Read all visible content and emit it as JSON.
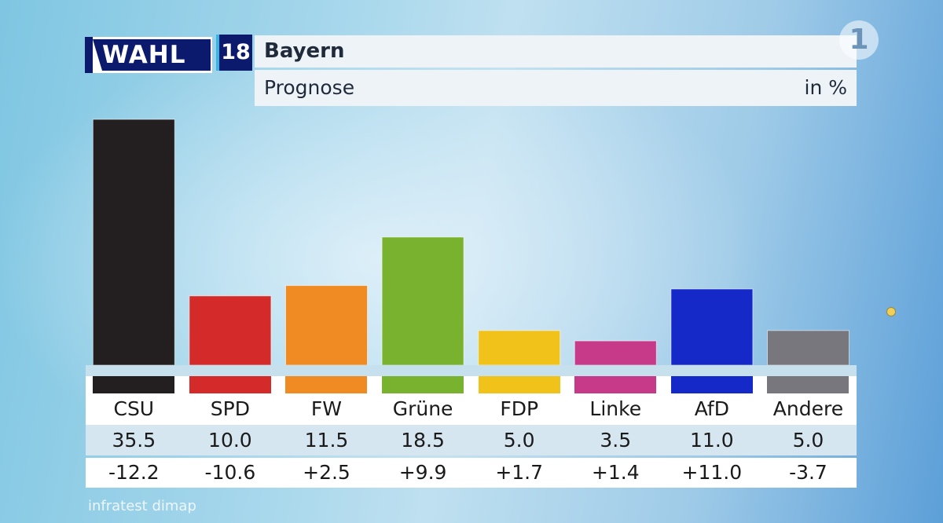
{
  "logo": {
    "wahl": "WAHL",
    "year": "18",
    "broadcaster": "1"
  },
  "header": {
    "title": "Bayern",
    "subtitle": "Prognose",
    "unit": "in %"
  },
  "source": "infratest dimap",
  "chart_data": {
    "type": "bar",
    "title": "Bayern",
    "subtitle": "Prognose",
    "unit": "in %",
    "categories": [
      "CSU",
      "SPD",
      "FW",
      "Grüne",
      "FDP",
      "Linke",
      "AfD",
      "Andere"
    ],
    "values": [
      35.5,
      10.0,
      11.5,
      18.5,
      5.0,
      3.5,
      11.0,
      5.0
    ],
    "value_labels": [
      "35.5",
      "10.0",
      "11.5",
      "18.5",
      "5.0",
      "3.5",
      "11.0",
      "5.0"
    ],
    "changes": [
      "-12.2",
      "-10.6",
      "+2.5",
      "+9.9",
      "+1.7",
      "+1.4",
      "+11.0",
      "-3.7"
    ],
    "colors": [
      "#231f20",
      "#d42a2a",
      "#f08a22",
      "#78b22e",
      "#f1c21a",
      "#c73a8a",
      "#1429c8",
      "#77777d"
    ],
    "ylim": [
      0,
      36
    ]
  }
}
